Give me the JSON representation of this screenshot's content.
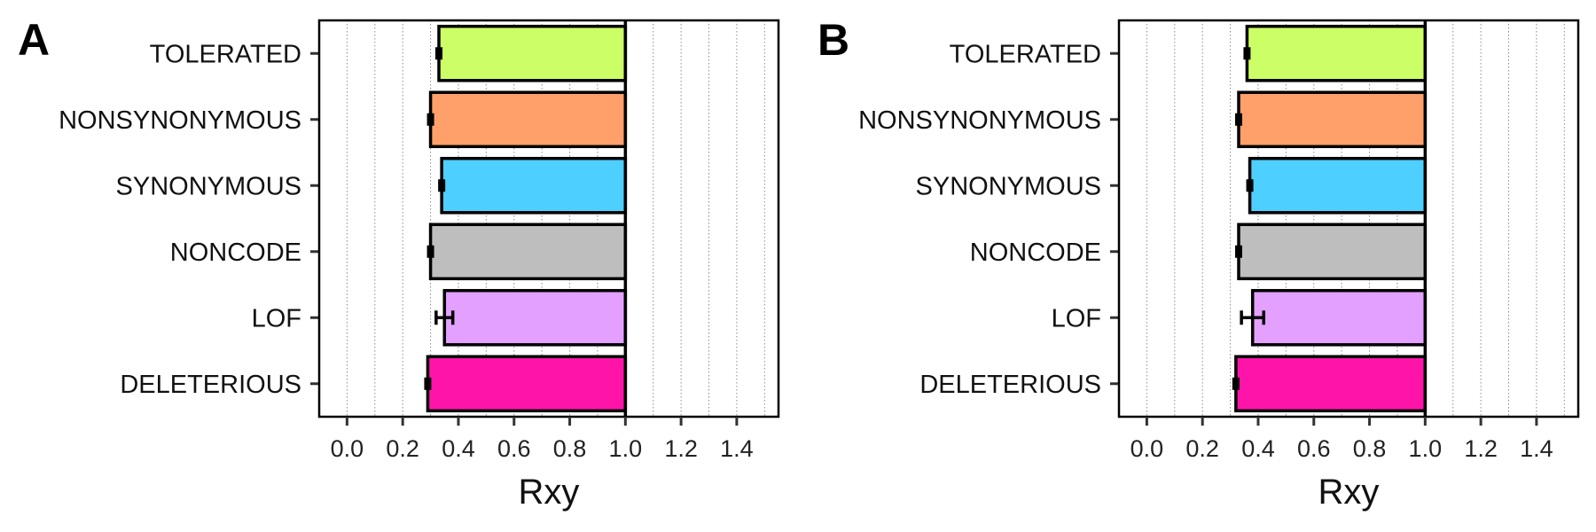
{
  "chart_data": [
    {
      "panel": "A",
      "type": "bar",
      "orientation": "horizontal",
      "categories": [
        "TOLERATED",
        "NONSYNONYMOUS",
        "SYNONYMOUS",
        "NONCODE",
        "LOF",
        "DELETERIOUS"
      ],
      "values": [
        0.33,
        0.3,
        0.34,
        0.3,
        0.35,
        0.29
      ],
      "errors": [
        0.005,
        0.005,
        0.005,
        0.005,
        0.03,
        0.005
      ],
      "bar_colors": [
        "#CCFF66",
        "#FFA06A",
        "#4DCFFF",
        "#BEBEBE",
        "#E4A0FF",
        "#FF14AA"
      ],
      "baseline": 1.0,
      "xlabel": "Rxy",
      "ylabel": "",
      "xlim": [
        -0.1,
        1.55
      ],
      "xticks": [
        "0.0",
        "0.2",
        "0.4",
        "0.6",
        "0.8",
        "1.0",
        "1.2",
        "1.4"
      ],
      "grid": "vertical dotted"
    },
    {
      "panel": "B",
      "type": "bar",
      "orientation": "horizontal",
      "categories": [
        "TOLERATED",
        "NONSYNONYMOUS",
        "SYNONYMOUS",
        "NONCODE",
        "LOF",
        "DELETERIOUS"
      ],
      "values": [
        0.36,
        0.33,
        0.37,
        0.33,
        0.38,
        0.32
      ],
      "errors": [
        0.005,
        0.005,
        0.005,
        0.005,
        0.04,
        0.005
      ],
      "bar_colors": [
        "#CCFF66",
        "#FFA06A",
        "#4DCFFF",
        "#BEBEBE",
        "#E4A0FF",
        "#FF14AA"
      ],
      "baseline": 1.0,
      "xlabel": "Rxy",
      "ylabel": "",
      "xlim": [
        -0.1,
        1.55
      ],
      "xticks": [
        "0.0",
        "0.2",
        "0.4",
        "0.6",
        "0.8",
        "1.0",
        "1.2",
        "1.4"
      ],
      "grid": "vertical dotted"
    }
  ]
}
